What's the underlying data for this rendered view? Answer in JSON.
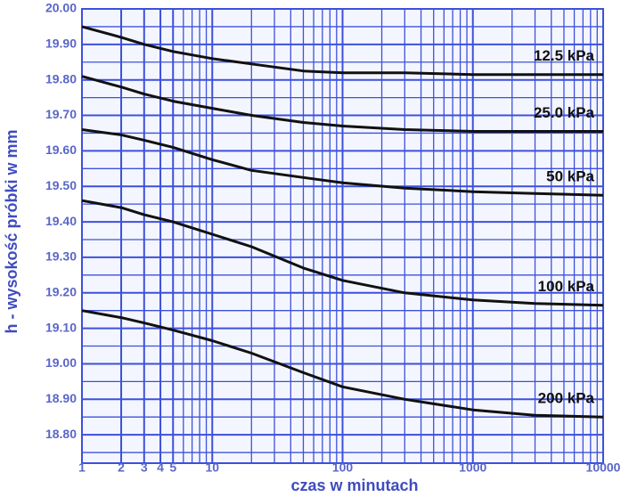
{
  "chart_data": {
    "type": "line",
    "x_label": "czas w minutach",
    "y_label": "h - wysokość próbki w mm",
    "x_log": true,
    "grid": true,
    "grid_color": "#3d50dc",
    "xlim": [
      1,
      10000
    ],
    "xticks": [
      1,
      2,
      3,
      4,
      5,
      10,
      100,
      1000,
      10000
    ],
    "ylim": [
      18.72,
      20.0
    ],
    "yticks": [
      {
        "value": 20.0,
        "label": "20.00"
      },
      {
        "value": 19.9,
        "label": "19.90"
      },
      {
        "value": 19.8,
        "label": "19.80"
      },
      {
        "value": 19.7,
        "label": "19.70"
      },
      {
        "value": 19.6,
        "label": "19.60"
      },
      {
        "value": 19.5,
        "label": "19.50"
      },
      {
        "value": 19.4,
        "label": "19.40"
      },
      {
        "value": 19.3,
        "label": "19.30"
      },
      {
        "value": 19.2,
        "label": "19.20"
      },
      {
        "value": 19.1,
        "label": "19.10"
      },
      {
        "value": 19.0,
        "label": "19.00"
      },
      {
        "value": 18.9,
        "label": "18.90"
      },
      {
        "value": 18.8,
        "label": "18.80"
      }
    ],
    "x": [
      1,
      2,
      3,
      5,
      10,
      20,
      50,
      100,
      300,
      1000,
      3000,
      10000
    ],
    "series": [
      {
        "name": "12.5 kPa",
        "color": "#111111",
        "values": [
          19.95,
          19.92,
          19.9,
          19.88,
          19.86,
          19.845,
          19.825,
          19.82,
          19.82,
          19.815,
          19.815,
          19.815
        ]
      },
      {
        "name": "25.0 kPa",
        "color": "#111111",
        "values": [
          19.81,
          19.78,
          19.76,
          19.74,
          19.72,
          19.7,
          19.68,
          19.67,
          19.66,
          19.655,
          19.655,
          19.655
        ]
      },
      {
        "name": "50 kPa",
        "color": "#111111",
        "values": [
          19.66,
          19.645,
          19.63,
          19.61,
          19.575,
          19.545,
          19.525,
          19.51,
          19.495,
          19.485,
          19.48,
          19.475
        ]
      },
      {
        "name": "100 kPa",
        "color": "#111111",
        "values": [
          19.46,
          19.44,
          19.42,
          19.4,
          19.365,
          19.33,
          19.27,
          19.235,
          19.2,
          19.18,
          19.17,
          19.165
        ]
      },
      {
        "name": "200 kPa",
        "color": "#111111",
        "values": [
          19.15,
          19.13,
          19.115,
          19.095,
          19.065,
          19.03,
          18.975,
          18.935,
          18.9,
          18.87,
          18.855,
          18.85
        ]
      }
    ]
  }
}
